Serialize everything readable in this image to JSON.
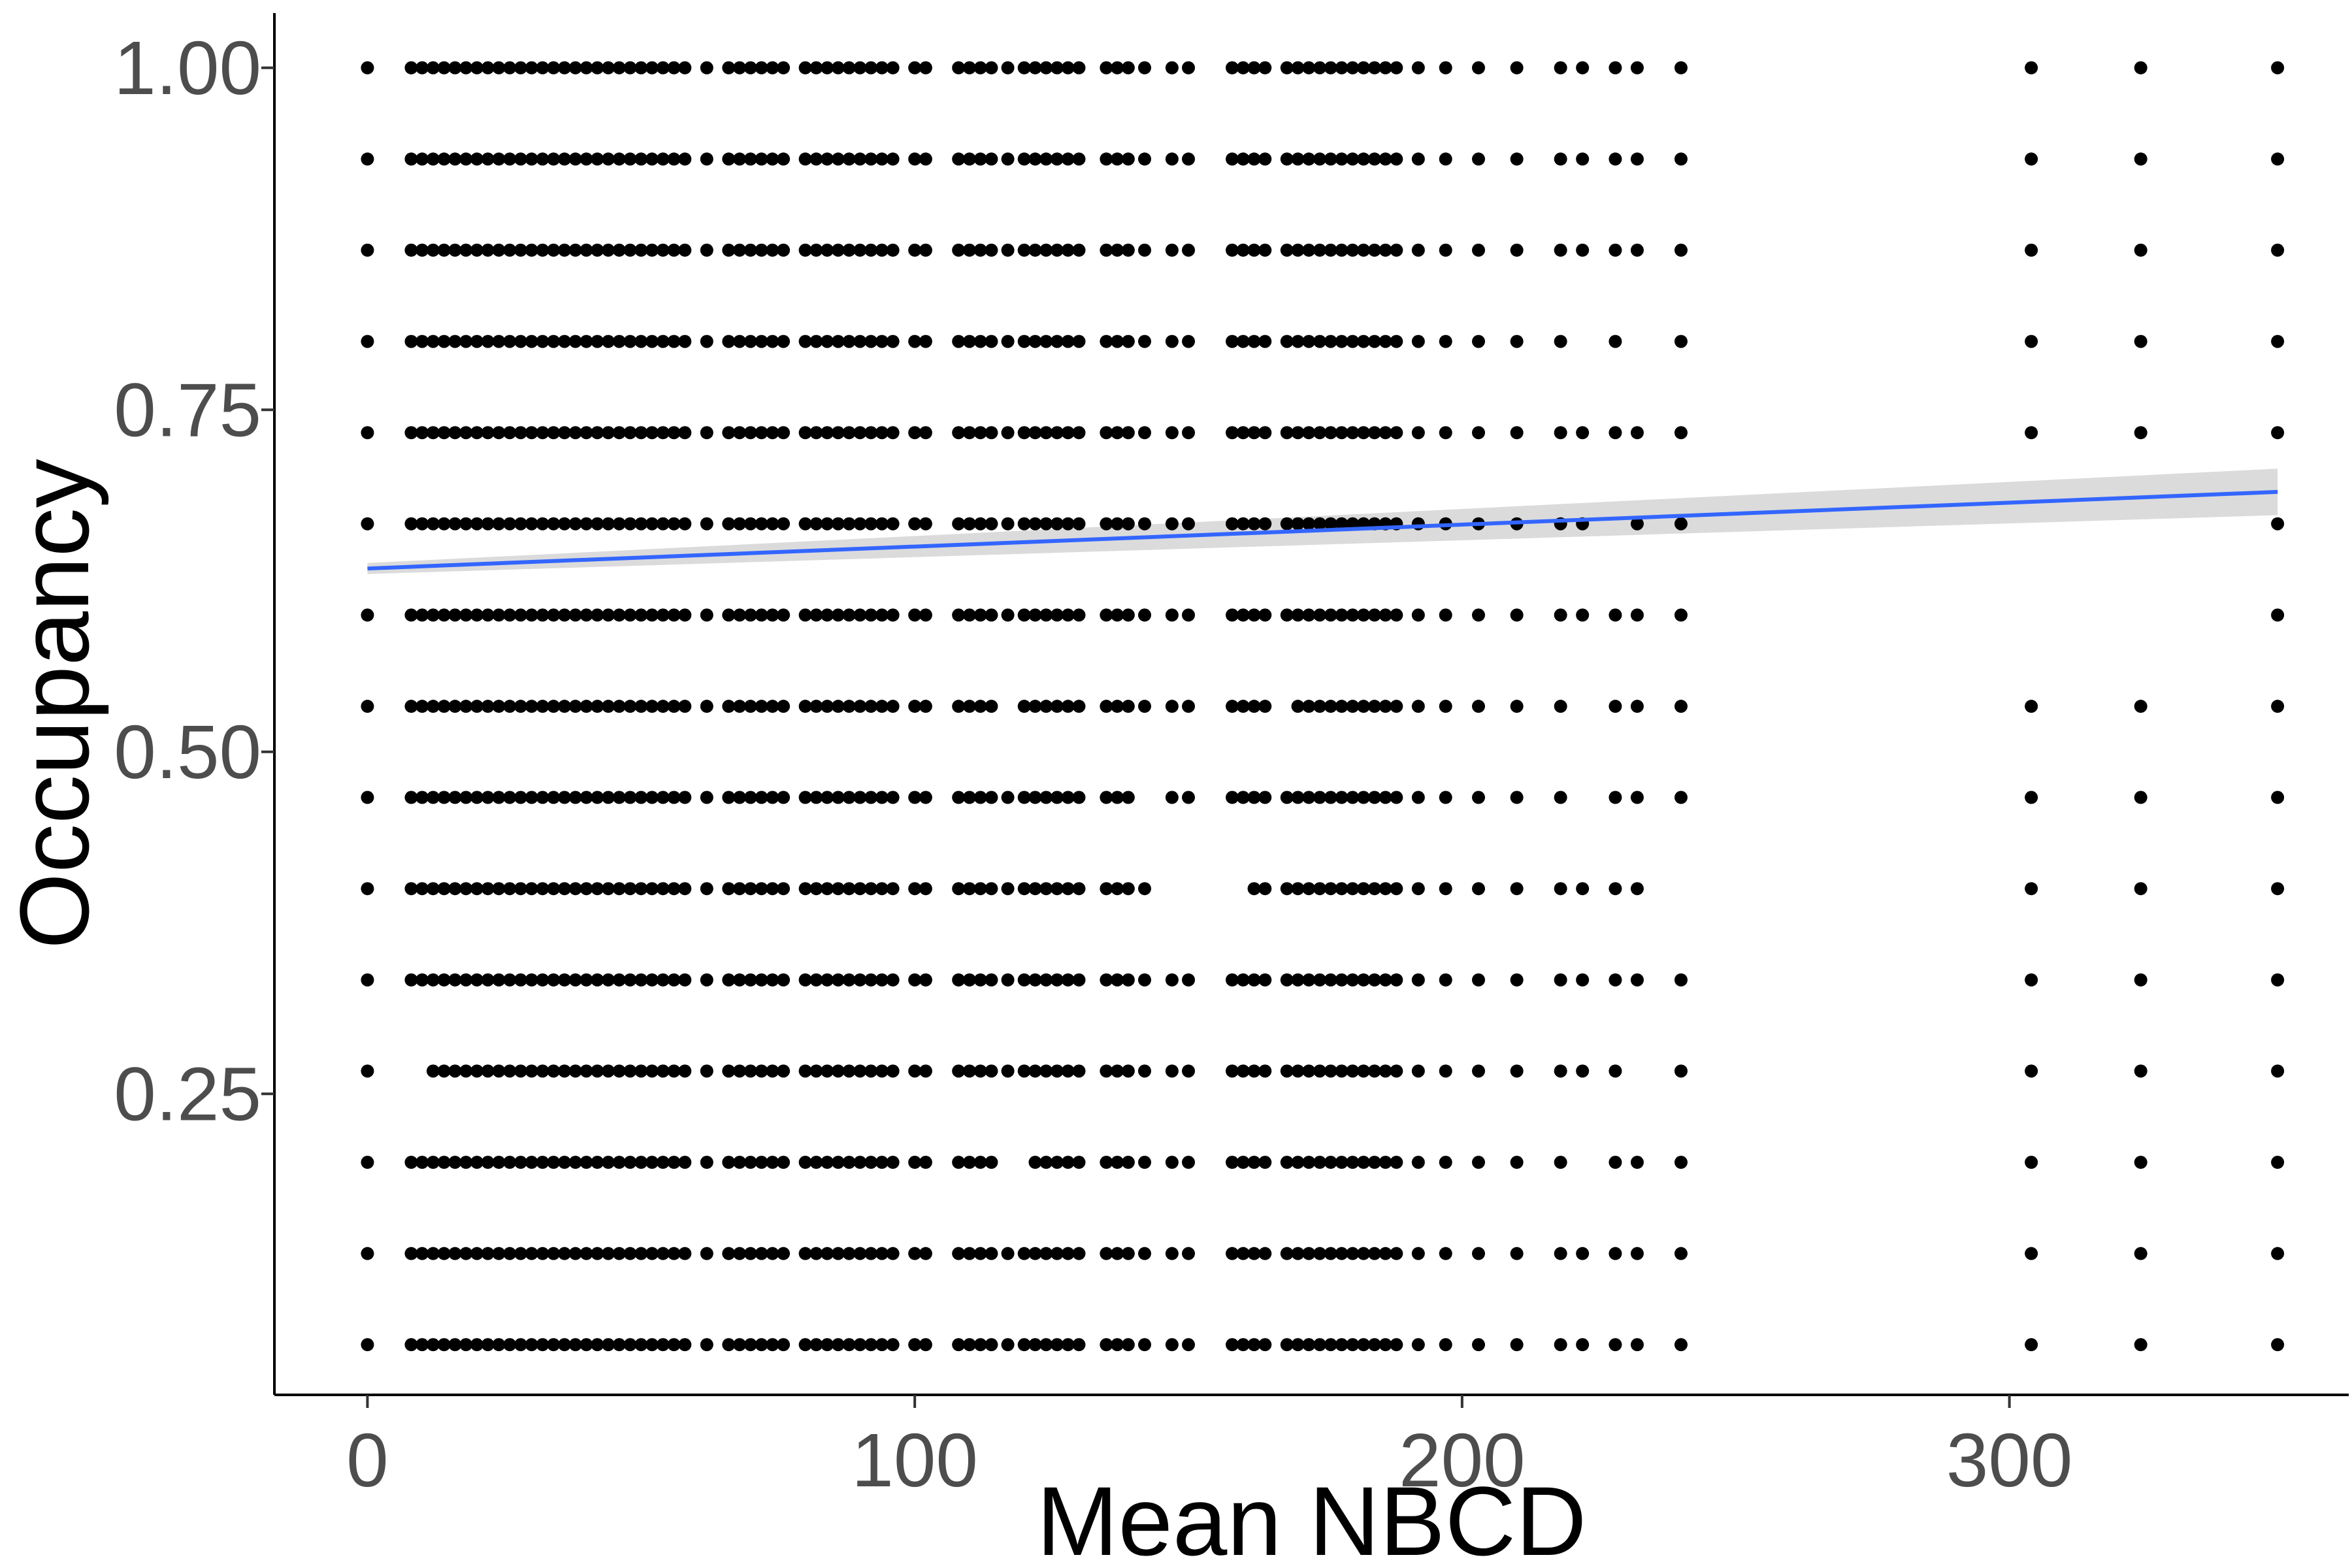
{
  "chart_data": {
    "type": "scatter",
    "xlabel": "Mean NBCD",
    "ylabel": "Occupancy",
    "xlim": [
      -17,
      362
    ],
    "ylim": [
      0.03,
      1.04
    ],
    "x_ticks": [
      0,
      100,
      200,
      300
    ],
    "x_tick_labels": [
      "0",
      "100",
      "200",
      "300"
    ],
    "y_ticks": [
      0.25,
      0.5,
      0.75,
      1.0
    ],
    "y_tick_labels": [
      "0.25",
      "0.50",
      "0.75",
      "1.00"
    ],
    "grid": false,
    "legend": "none",
    "occupancy_levels": [
      0.0667,
      0.1333,
      0.2,
      0.2667,
      0.3333,
      0.4,
      0.4667,
      0.5333,
      0.6,
      0.6667,
      0.7333,
      0.8,
      0.8667,
      0.9333,
      1.0
    ],
    "nbcd_values": [
      0,
      8,
      10,
      12,
      14,
      16,
      18,
      20,
      22,
      24,
      26,
      28,
      30,
      32,
      34,
      36,
      38,
      40,
      42,
      44,
      46,
      48,
      50,
      52,
      54,
      56,
      58,
      62,
      66,
      68,
      70,
      72,
      74,
      76,
      80,
      82,
      84,
      86,
      88,
      90,
      92,
      94,
      96,
      100,
      102,
      108,
      110,
      112,
      114,
      117,
      120,
      122,
      124,
      126,
      128,
      130,
      135,
      137,
      139,
      142,
      147,
      150,
      158,
      160,
      162,
      164,
      168,
      170,
      172,
      174,
      176,
      178,
      180,
      182,
      184,
      186,
      188,
      192,
      197,
      203,
      210,
      218,
      222,
      228,
      232,
      240,
      304,
      324,
      349
    ],
    "fit": {
      "method": "linear",
      "line_color": "#3366ff",
      "ribbon_color": "#d9d9d9",
      "x": [
        0,
        349
      ],
      "y": [
        0.634,
        0.69
      ],
      "ci_low": [
        0.63,
        0.673
      ],
      "ci_high": [
        0.638,
        0.707
      ]
    },
    "point_color": "#000000"
  }
}
